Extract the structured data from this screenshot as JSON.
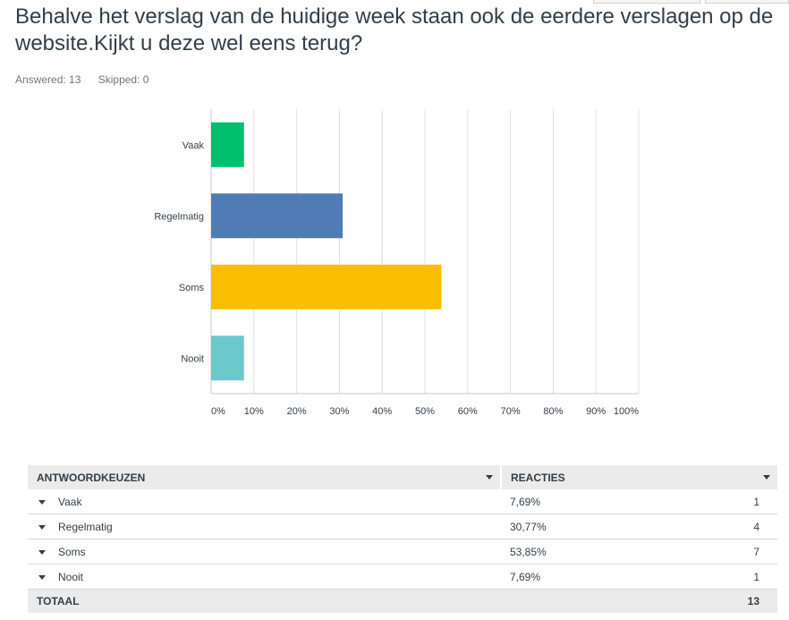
{
  "question": "Behalve het verslag van de huidige week staan ook de eerdere verslagen op de website.Kijkt u deze wel eens terug?",
  "stats": {
    "answered": "Answered: 13",
    "skipped": "Skipped: 0"
  },
  "colors": {
    "bars": [
      "#00bf6f",
      "#507cb6",
      "#f9be00",
      "#6bc8cd"
    ],
    "grid": "#e0e0e0"
  },
  "chart_data": {
    "type": "bar",
    "orientation": "horizontal",
    "categories": [
      "Vaak",
      "Regelmatig",
      "Soms",
      "Nooit"
    ],
    "values": [
      7.69,
      30.77,
      53.85,
      7.69
    ],
    "xlim": [
      0,
      100
    ],
    "xticks": [
      "0%",
      "10%",
      "20%",
      "30%",
      "40%",
      "50%",
      "60%",
      "70%",
      "80%",
      "90%",
      "100%"
    ],
    "grid": true
  },
  "table": {
    "headers": {
      "choices": "ANTWOORDKEUZEN",
      "responses": "REACTIES"
    },
    "rows": [
      {
        "label": "Vaak",
        "percent": "7,69%",
        "count": "1"
      },
      {
        "label": "Regelmatig",
        "percent": "30,77%",
        "count": "4"
      },
      {
        "label": "Soms",
        "percent": "53,85%",
        "count": "7"
      },
      {
        "label": "Nooit",
        "percent": "7,69%",
        "count": "1"
      }
    ],
    "total": {
      "label": "TOTAAL",
      "count": "13"
    }
  }
}
